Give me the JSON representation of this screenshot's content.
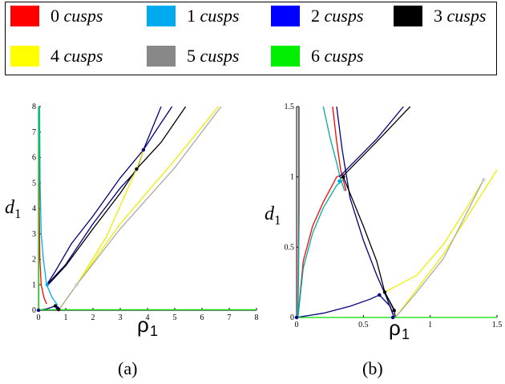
{
  "legend": {
    "items": [
      {
        "number": "0",
        "word": "cusps",
        "color": "#ff0000"
      },
      {
        "number": "1",
        "word": "cusps",
        "color": "#00aaee"
      },
      {
        "number": "2",
        "word": "cusps",
        "color": "#0000ff"
      },
      {
        "number": "3",
        "word": "cusps",
        "color": "#000000"
      },
      {
        "number": "4",
        "word": "cusps",
        "color": "#ffff00"
      },
      {
        "number": "5",
        "word": "cusps",
        "color": "#888888"
      },
      {
        "number": "6",
        "word": "cusps",
        "color": "#00ee00"
      }
    ]
  },
  "captions": {
    "a": "(a)",
    "b": "(b)"
  },
  "chart_data": [
    {
      "type": "line",
      "xlabel": "ρ",
      "xlabel_sub": "1",
      "ylabel": "d",
      "ylabel_sub": "1",
      "xlim": [
        0,
        8
      ],
      "ylim": [
        0,
        8
      ],
      "xticks": [
        "0",
        "1",
        "2",
        "3",
        "4",
        "5",
        "6",
        "7",
        "8"
      ],
      "yticks": [
        "0",
        "1",
        "2",
        "3",
        "4",
        "5",
        "6",
        "7",
        "8"
      ],
      "series": [
        {
          "color": "#ff0000",
          "points": [
            [
              0.02,
              8
            ],
            [
              0.03,
              4
            ],
            [
              0.05,
              2
            ],
            [
              0.1,
              1
            ],
            [
              0.2,
              0.5
            ],
            [
              0.3,
              0.25
            ]
          ]
        },
        {
          "color": "#00aaee",
          "points": [
            [
              0.04,
              8
            ],
            [
              0.06,
              5
            ],
            [
              0.1,
              3
            ],
            [
              0.18,
              2
            ],
            [
              0.3,
              1
            ],
            [
              0.5,
              0.5
            ],
            [
              0.7,
              0.2
            ]
          ]
        },
        {
          "color": "#000080",
          "points": [
            [
              0.3,
              1
            ],
            [
              1,
              1.8
            ],
            [
              2,
              3.4
            ],
            [
              3,
              4.8
            ],
            [
              3.6,
              5.5
            ],
            [
              3.85,
              6.3
            ],
            [
              4.5,
              8
            ]
          ]
        },
        {
          "color": "#000080",
          "points": [
            [
              0.3,
              1
            ],
            [
              0.6,
              1.5
            ],
            [
              1.2,
              2.6
            ],
            [
              2,
              3.7
            ],
            [
              3,
              5.2
            ],
            [
              3.85,
              6.3
            ],
            [
              4.4,
              7.2
            ],
            [
              4.9,
              8
            ]
          ]
        },
        {
          "color": "#000080",
          "points": [
            [
              0,
              0
            ],
            [
              0.3,
              0.05
            ],
            [
              0.62,
              0.17
            ],
            [
              0.7,
              0.12
            ],
            [
              0.74,
              0.02
            ]
          ]
        },
        {
          "color": "#000000",
          "points": [
            [
              0.35,
              1
            ],
            [
              1,
              1.75
            ],
            [
              2,
              3.2
            ],
            [
              3,
              4.6
            ],
            [
              3.6,
              5.55
            ],
            [
              4.5,
              6.6
            ],
            [
              5.4,
              8
            ]
          ]
        },
        {
          "color": "#000000",
          "points": [
            [
              0.62,
              0.17
            ],
            [
              0.74,
              0.05
            ]
          ]
        },
        {
          "color": "#eeee00",
          "points": [
            [
              0.74,
              0
            ],
            [
              1,
              0.4
            ],
            [
              1.4,
              1
            ],
            [
              2.5,
              2.9
            ],
            [
              3.6,
              5.55
            ],
            [
              3.85,
              6.3
            ]
          ]
        },
        {
          "color": "#eeee00",
          "points": [
            [
              0.74,
              0
            ],
            [
              1.4,
              1
            ],
            [
              3,
              3.4
            ],
            [
              5,
              5.9
            ],
            [
              6.6,
              8
            ]
          ]
        },
        {
          "color": "#aaaaaa",
          "points": [
            [
              0.74,
              0
            ],
            [
              1.4,
              1
            ],
            [
              3,
              3.2
            ],
            [
              5,
              5.6
            ],
            [
              6.7,
              8
            ]
          ]
        },
        {
          "color": "#00dd00",
          "points": [
            [
              0,
              0.02
            ],
            [
              8,
              0.02
            ]
          ]
        },
        {
          "color": "#00dd00",
          "points": [
            [
              0.01,
              0
            ],
            [
              0.01,
              8
            ]
          ]
        }
      ],
      "markers": [
        {
          "x": 0.32,
          "y": 1.0,
          "color": "#00aaee"
        },
        {
          "x": 1.4,
          "y": 1.0,
          "color": "#cccccc"
        },
        {
          "x": 3.6,
          "y": 5.55,
          "color": "#000000"
        },
        {
          "x": 3.85,
          "y": 6.3,
          "color": "#000080"
        },
        {
          "x": 0.62,
          "y": 0.17,
          "color": "#000000"
        },
        {
          "x": 0.7,
          "y": 0.08,
          "color": "#000080"
        },
        {
          "x": 0.74,
          "y": 0.03,
          "color": "#000000"
        },
        {
          "x": 0,
          "y": 0,
          "color": "#000080"
        }
      ]
    },
    {
      "type": "line",
      "xlabel": "ρ",
      "xlabel_sub": "1",
      "ylabel": "d",
      "ylabel_sub": "1",
      "xlim": [
        0,
        1.5
      ],
      "ylim": [
        0,
        1.5
      ],
      "xticks": [
        "0",
        "0.5",
        "1",
        "1.5"
      ],
      "yticks": [
        "0",
        "0.5",
        "1",
        "1.5"
      ],
      "series": [
        {
          "color": "#ff0000",
          "points": [
            [
              0.015,
              1.5
            ],
            [
              0.015,
              0.8
            ],
            [
              0.012,
              0.3
            ],
            [
              0.01,
              0
            ]
          ]
        },
        {
          "color": "#ff0000",
          "points": [
            [
              0.01,
              0
            ],
            [
              0.05,
              0.4
            ],
            [
              0.12,
              0.65
            ],
            [
              0.2,
              0.82
            ],
            [
              0.3,
              1.0
            ],
            [
              0.35,
              1.02
            ]
          ]
        },
        {
          "color": "#ff0000",
          "points": [
            [
              0.27,
              1.5
            ],
            [
              0.3,
              1.25
            ],
            [
              0.33,
              1.05
            ],
            [
              0.37,
              0.9
            ]
          ]
        },
        {
          "color": "#00aaaa",
          "points": [
            [
              0.02,
              1.5
            ],
            [
              0.02,
              0.8
            ],
            [
              0.015,
              0.3
            ],
            [
              0.01,
              0
            ]
          ]
        },
        {
          "color": "#00aaaa",
          "points": [
            [
              0.01,
              0
            ],
            [
              0.05,
              0.35
            ],
            [
              0.12,
              0.6
            ],
            [
              0.2,
              0.78
            ],
            [
              0.3,
              0.94
            ],
            [
              0.35,
              0.98
            ]
          ]
        },
        {
          "color": "#00aaaa",
          "points": [
            [
              0.2,
              1.5
            ],
            [
              0.25,
              1.28
            ],
            [
              0.3,
              1.1
            ],
            [
              0.33,
              0.98
            ],
            [
              0.36,
              0.9
            ]
          ]
        },
        {
          "color": "#000080",
          "points": [
            [
              0.32,
              1.0
            ],
            [
              0.6,
              1.27
            ],
            [
              0.8,
              1.5
            ]
          ]
        },
        {
          "color": "#000080",
          "points": [
            [
              0.3,
              1.5
            ],
            [
              0.34,
              1.2
            ],
            [
              0.4,
              0.85
            ],
            [
              0.5,
              0.55
            ],
            [
              0.6,
              0.3
            ],
            [
              0.67,
              0.15
            ],
            [
              0.73,
              0
            ]
          ]
        },
        {
          "color": "#000080",
          "points": [
            [
              0,
              0
            ],
            [
              0.2,
              0.03
            ],
            [
              0.4,
              0.08
            ],
            [
              0.55,
              0.13
            ],
            [
              0.62,
              0.16
            ],
            [
              0.7,
              0.08
            ],
            [
              0.73,
              0
            ]
          ]
        },
        {
          "color": "#000000",
          "points": [
            [
              0.33,
              0.99
            ],
            [
              0.6,
              1.25
            ],
            [
              0.85,
              1.5
            ]
          ]
        },
        {
          "color": "#000000",
          "points": [
            [
              0.35,
              1.0
            ],
            [
              0.5,
              0.65
            ],
            [
              0.6,
              0.4
            ],
            [
              0.66,
              0.18
            ],
            [
              0.73,
              0.05
            ],
            [
              0.74,
              0
            ]
          ]
        },
        {
          "color": "#000000",
          "points": [
            [
              0.66,
              0.18
            ],
            [
              0.74,
              0.04
            ]
          ]
        },
        {
          "color": "#eeee00",
          "points": [
            [
              0.66,
              0.18
            ],
            [
              0.9,
              0.3
            ],
            [
              1.1,
              0.52
            ],
            [
              1.3,
              0.82
            ],
            [
              1.4,
              0.98
            ]
          ]
        },
        {
          "color": "#eeee00",
          "points": [
            [
              0.74,
              0
            ],
            [
              0.9,
              0.2
            ],
            [
              1.1,
              0.45
            ],
            [
              1.3,
              0.75
            ],
            [
              1.5,
              1.05
            ]
          ]
        },
        {
          "color": "#aaaaaa",
          "points": [
            [
              0.74,
              0
            ],
            [
              0.9,
              0.18
            ],
            [
              1.1,
              0.42
            ],
            [
              1.4,
              0.98
            ]
          ]
        },
        {
          "color": "#00dd00",
          "points": [
            [
              0.01,
              0
            ],
            [
              1.5,
              0
            ]
          ]
        }
      ],
      "markers": [
        {
          "x": 0.32,
          "y": 0.97,
          "color": "#00aaee"
        },
        {
          "x": 0.35,
          "y": 1.0,
          "color": "#000000"
        },
        {
          "x": 0.62,
          "y": 0.16,
          "color": "#000080"
        },
        {
          "x": 0.66,
          "y": 0.18,
          "color": "#000000"
        },
        {
          "x": 0.73,
          "y": 0.05,
          "color": "#000000"
        },
        {
          "x": 0.72,
          "y": 0.0,
          "color": "#000080"
        },
        {
          "x": 1.4,
          "y": 0.98,
          "color": "#cccccc"
        },
        {
          "x": 0,
          "y": 0,
          "color": "#000080"
        }
      ]
    }
  ]
}
